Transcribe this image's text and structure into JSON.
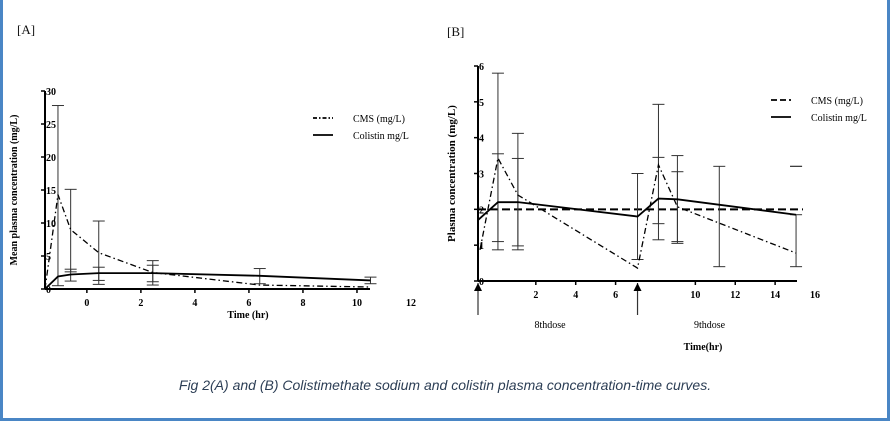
{
  "caption": "Fig 2(A) and (B) Colistimethate sodium and colistin plasma concentration-time curves.",
  "chart_data": [
    {
      "panel": "[A]",
      "type": "line",
      "xlabel": "Time (hr)",
      "ylabel": "Mean plasma concentration (mg/L)",
      "xlim": [
        -1.55,
        12
      ],
      "ylim": [
        0,
        30
      ],
      "xticks": [
        0,
        2,
        4,
        6,
        8,
        10,
        12
      ],
      "yticks": [
        0,
        5,
        10,
        15,
        20,
        25,
        30
      ],
      "legend_position": "top-right",
      "series": [
        {
          "name": "CMS (mg/L)",
          "style": "dashdot",
          "x": [
            -1.55,
            -1.07,
            -0.6,
            0.44,
            2.44,
            6.4,
            10.5
          ],
          "y": [
            0,
            14.3,
            9,
            5.5,
            2.5,
            0.6,
            0.3
          ]
        },
        {
          "name": "Colistin mg/L",
          "style": "solid",
          "x": [
            -1.55,
            -1.07,
            -0.6,
            0.44,
            2.44,
            6.4,
            10.5
          ],
          "y": [
            0,
            1.9,
            2.2,
            2.4,
            2.4,
            2.0,
            1.3
          ]
        }
      ],
      "error_bars": [
        {
          "x": -1.07,
          "low": 0.5,
          "high": 27.8
        },
        {
          "x": -0.6,
          "low": 1.2,
          "high": 15.1
        },
        {
          "x": -0.6,
          "low": 2.6,
          "high": 3.0
        },
        {
          "x": 0.44,
          "low": 0.7,
          "high": 10.3
        },
        {
          "x": 0.44,
          "low": 1.3,
          "high": 3.3
        },
        {
          "x": 2.44,
          "low": 0.6,
          "high": 4.3
        },
        {
          "x": 2.44,
          "low": 1.1,
          "high": 3.6
        },
        {
          "x": 6.4,
          "low": 0.8,
          "high": 3.1
        },
        {
          "x": 10.5,
          "low": 0.8,
          "high": 1.8
        }
      ]
    },
    {
      "panel": "[B]",
      "type": "line",
      "xlabel": "Time(hr)",
      "ylabel": "Plasma concentration (mg/L)",
      "xlim": [
        -0.9,
        16
      ],
      "ylim": [
        0,
        6
      ],
      "xticks": [
        2,
        4,
        6,
        10,
        12,
        14,
        16
      ],
      "yticks": [
        0,
        1,
        2,
        3,
        4,
        5,
        6
      ],
      "legend_position": "top-right",
      "dose_markers": [
        {
          "x": -0.9,
          "label": "8thdose"
        },
        {
          "x": 7.1,
          "label": "9thdose"
        }
      ],
      "reference_line": 2.0,
      "series": [
        {
          "name": "CMS (mg/L)",
          "style": "dashdot",
          "x": [
            -0.8,
            0.1,
            1.1,
            7.1,
            8.15,
            9.1,
            15.05
          ],
          "y": [
            0.87,
            3.43,
            2.4,
            0.36,
            3.24,
            2.07,
            0.78
          ]
        },
        {
          "name": "Colistin mg/L",
          "style": "solid",
          "x": [
            -0.9,
            0.1,
            1.1,
            7.1,
            8.15,
            9.1,
            15.05
          ],
          "y": [
            1.7,
            2.2,
            2.2,
            1.8,
            2.3,
            2.28,
            1.85
          ]
        }
      ],
      "error_bars": [
        {
          "x": 0.1,
          "low": 0.87,
          "high": 5.8
        },
        {
          "x": 0.1,
          "low": 1.1,
          "high": 3.55
        },
        {
          "x": 1.1,
          "low": 0.87,
          "high": 4.12
        },
        {
          "x": 1.1,
          "low": 0.98,
          "high": 3.42
        },
        {
          "x": 7.1,
          "low": 0.6,
          "high": 3.0
        },
        {
          "x": 8.15,
          "low": 1.15,
          "high": 4.93
        },
        {
          "x": 8.15,
          "low": 1.6,
          "high": 3.45
        },
        {
          "x": 9.1,
          "low": 1.05,
          "high": 3.5
        },
        {
          "x": 9.1,
          "low": 1.1,
          "high": 3.05
        },
        {
          "x": 11.2,
          "low": 0.4,
          "high": 3.2
        },
        {
          "x": 15.05,
          "low": 0.4,
          "high": 1.85
        },
        {
          "x": 15.05,
          "low": 3.2,
          "high": 3.2
        }
      ]
    }
  ]
}
